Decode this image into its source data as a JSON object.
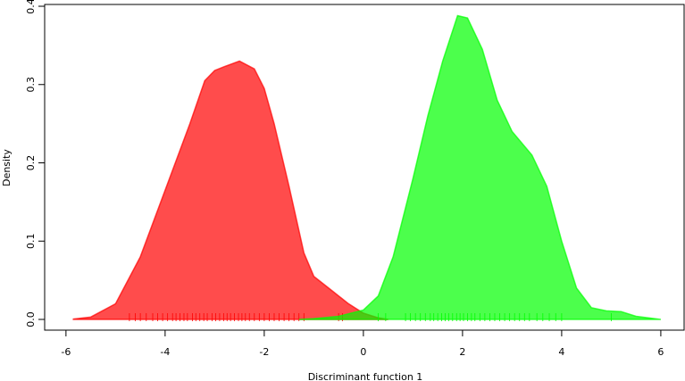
{
  "chart_data": {
    "type": "density",
    "x_label": "Discriminant function 1",
    "y_label": "Density",
    "xlim": [
      -6.43,
      6.47
    ],
    "ylim": [
      -0.0137,
      0.4023
    ],
    "xticks": [
      -6,
      -4,
      -2,
      0,
      2,
      4,
      6
    ],
    "yticks": [
      {
        "value": 0,
        "label": "0.0"
      },
      0.1,
      0.2,
      0.3,
      0.4
    ],
    "opacity": 0.7,
    "series": [
      {
        "color": "#ff0000",
        "x": [
          -5.85,
          -5.5,
          -5.0,
          -4.5,
          -4.0,
          -3.5,
          -3.2,
          -3.0,
          -2.8,
          -2.5,
          -2.2,
          -2.0,
          -1.8,
          -1.5,
          -1.2,
          -1.0,
          -0.6,
          -0.3,
          0,
          0.3,
          0.5
        ],
        "values": [
          0.0005,
          0.003,
          0.02,
          0.08,
          0.165,
          0.25,
          0.305,
          0.318,
          0.323,
          0.33,
          0.32,
          0.295,
          0.25,
          0.17,
          0.085,
          0.055,
          0.035,
          0.02,
          0.008,
          0.002,
          0.0
        ],
        "rug": [
          -4.72,
          -4.6,
          -4.5,
          -4.38,
          -4.25,
          -4.15,
          -4.05,
          -3.95,
          -3.85,
          -3.78,
          -3.7,
          -3.62,
          -3.55,
          -3.45,
          -3.38,
          -3.3,
          -3.22,
          -3.15,
          -3.05,
          -2.98,
          -2.9,
          -2.82,
          -2.75,
          -2.68,
          -2.6,
          -2.52,
          -2.45,
          -2.38,
          -2.3,
          -2.2,
          -2.1,
          -2.0,
          -1.9,
          -1.8,
          -1.7,
          -1.6,
          -1.5,
          -1.4,
          -1.3,
          -1.2,
          -0.5,
          -0.42
        ]
      },
      {
        "color": "#00ff00",
        "x": [
          -1.3,
          -1.0,
          -0.5,
          0,
          0.3,
          0.6,
          1.0,
          1.3,
          1.6,
          1.9,
          2.1,
          2.4,
          2.7,
          3.0,
          3.4,
          3.7,
          4.0,
          4.3,
          4.6,
          4.9,
          5.2,
          5.5,
          6.0
        ],
        "values": [
          0.0,
          0.001,
          0.004,
          0.012,
          0.03,
          0.08,
          0.18,
          0.26,
          0.33,
          0.388,
          0.385,
          0.345,
          0.28,
          0.24,
          0.21,
          0.17,
          0.1,
          0.04,
          0.015,
          0.011,
          0.01,
          0.004,
          0.0
        ],
        "rug": [
          0.3,
          0.45,
          0.85,
          0.95,
          1.05,
          1.15,
          1.25,
          1.35,
          1.42,
          1.5,
          1.58,
          1.65,
          1.72,
          1.8,
          1.88,
          1.95,
          2.02,
          2.1,
          2.18,
          2.25,
          2.35,
          2.45,
          2.55,
          2.65,
          2.75,
          2.85,
          2.95,
          3.05,
          3.15,
          3.25,
          3.35,
          3.5,
          3.62,
          3.75,
          3.88,
          4.0,
          5.0
        ]
      }
    ]
  }
}
